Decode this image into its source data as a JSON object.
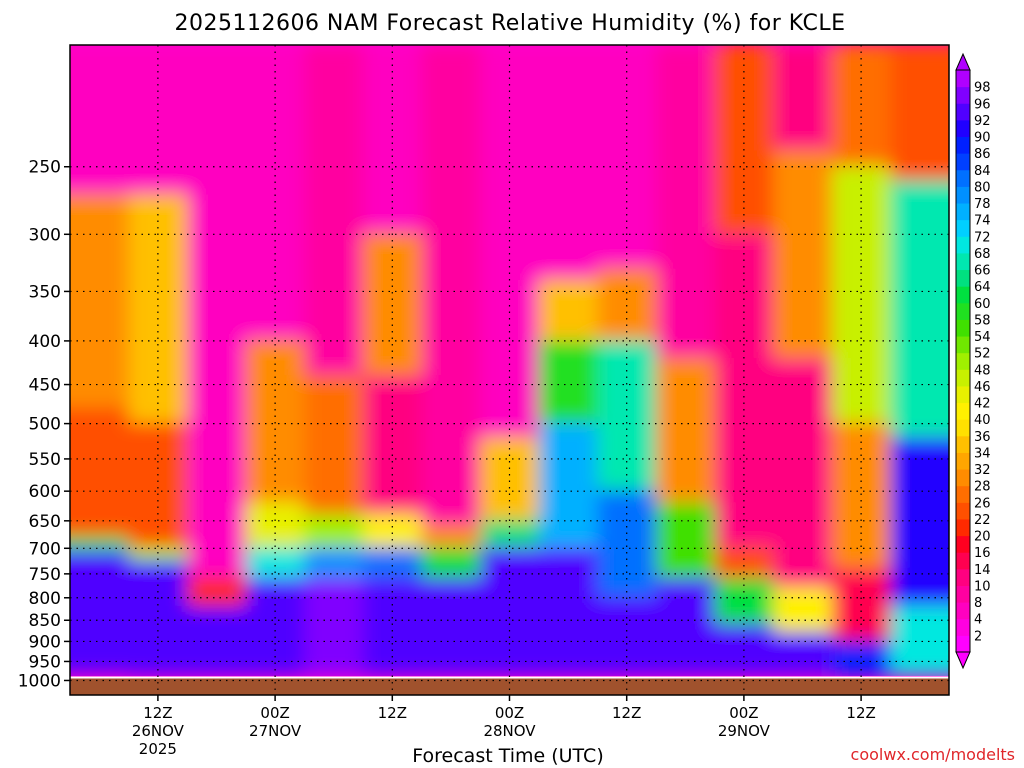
{
  "chart_data": {
    "type": "heatmap",
    "title": "2025112606 NAM Forecast Relative Humidity (%) for KCLE",
    "xlabel": "Forecast Time (UTC)",
    "ylabel": "",
    "credit": "coolwx.com/modelts",
    "y_scale": "pressure (hPa), log-like, inverted",
    "ylim": [
      1040,
      180
    ],
    "y_ticks": [
      250,
      300,
      350,
      400,
      450,
      500,
      550,
      600,
      650,
      700,
      750,
      800,
      850,
      900,
      950,
      1000
    ],
    "x_ticks": [
      {
        "time": "2025-11-26 12Z",
        "lines": [
          "12Z",
          "26NOV",
          "2025"
        ]
      },
      {
        "time": "2025-11-27 00Z",
        "lines": [
          "00Z",
          "27NOV"
        ]
      },
      {
        "time": "2025-11-27 12Z",
        "lines": [
          "12Z"
        ]
      },
      {
        "time": "2025-11-28 00Z",
        "lines": [
          "00Z",
          "28NOV"
        ]
      },
      {
        "time": "2025-11-28 12Z",
        "lines": [
          "12Z"
        ]
      },
      {
        "time": "2025-11-29 00Z",
        "lines": [
          "00Z",
          "29NOV"
        ]
      },
      {
        "time": "2025-11-29 12Z",
        "lines": [
          "12Z"
        ]
      }
    ],
    "grid": true,
    "colorbar": {
      "levels": [
        2,
        4,
        8,
        10,
        14,
        16,
        20,
        22,
        26,
        28,
        32,
        34,
        36,
        40,
        42,
        46,
        48,
        52,
        54,
        58,
        60,
        64,
        66,
        68,
        72,
        74,
        78,
        80,
        84,
        86,
        90,
        92,
        96,
        98
      ],
      "colors": [
        "#ff00ff",
        "#ff00e0",
        "#ff00c0",
        "#ff00a0",
        "#ff0080",
        "#ff0050",
        "#ff0020",
        "#ff2a00",
        "#ff5000",
        "#ff6e00",
        "#ff8c00",
        "#ffa600",
        "#ffc000",
        "#ffe000",
        "#fff000",
        "#e8f000",
        "#c8f000",
        "#a0f000",
        "#70e800",
        "#40e000",
        "#20e020",
        "#00e040",
        "#00e080",
        "#00e8b0",
        "#00e8e0",
        "#00d0ff",
        "#00b0ff",
        "#0090ff",
        "#0070ff",
        "#0040ff",
        "#0020ff",
        "#2000ff",
        "#5000ff",
        "#8000ff",
        "#b000ff"
      ]
    },
    "ground": {
      "label": "surface",
      "pressure_hPa": 992,
      "color": "#a0522d"
    },
    "rh_profiles": [
      {
        "time": "2025-11-26 06Z",
        "bands": [
          {
            "top": 180,
            "bottom": 270,
            "rh": 4
          },
          {
            "top": 270,
            "bottom": 480,
            "rh": 30
          },
          {
            "top": 480,
            "bottom": 680,
            "rh": 24
          },
          {
            "top": 680,
            "bottom": 705,
            "rh": 60
          },
          {
            "top": 705,
            "bottom": 980,
            "rh": 95
          }
        ]
      },
      {
        "time": "2025-11-26 12Z",
        "bands": [
          {
            "top": 180,
            "bottom": 270,
            "rh": 4
          },
          {
            "top": 270,
            "bottom": 500,
            "rh": 34
          },
          {
            "top": 500,
            "bottom": 700,
            "rh": 22
          },
          {
            "top": 700,
            "bottom": 725,
            "rh": 50
          },
          {
            "top": 725,
            "bottom": 985,
            "rh": 94
          }
        ]
      },
      {
        "time": "2025-11-26 18Z",
        "bands": [
          {
            "top": 180,
            "bottom": 760,
            "rh": 6
          },
          {
            "top": 760,
            "bottom": 820,
            "rh": 20
          },
          {
            "top": 820,
            "bottom": 985,
            "rh": 94
          }
        ]
      },
      {
        "time": "2025-11-27 00Z",
        "bands": [
          {
            "top": 180,
            "bottom": 400,
            "rh": 6
          },
          {
            "top": 400,
            "bottom": 620,
            "rh": 28
          },
          {
            "top": 620,
            "bottom": 700,
            "rh": 44
          },
          {
            "top": 700,
            "bottom": 760,
            "rh": 70
          },
          {
            "top": 760,
            "bottom": 985,
            "rh": 95
          }
        ]
      },
      {
        "time": "2025-11-27 06Z",
        "bands": [
          {
            "top": 180,
            "bottom": 440,
            "rh": 8
          },
          {
            "top": 440,
            "bottom": 640,
            "rh": 26
          },
          {
            "top": 640,
            "bottom": 700,
            "rh": 50
          },
          {
            "top": 700,
            "bottom": 760,
            "rh": 78
          },
          {
            "top": 760,
            "bottom": 985,
            "rh": 96
          }
        ]
      },
      {
        "time": "2025-11-27 12Z",
        "bands": [
          {
            "top": 180,
            "bottom": 300,
            "rh": 6
          },
          {
            "top": 300,
            "bottom": 440,
            "rh": 28
          },
          {
            "top": 440,
            "bottom": 640,
            "rh": 12
          },
          {
            "top": 640,
            "bottom": 700,
            "rh": 40
          },
          {
            "top": 700,
            "bottom": 760,
            "rh": 80
          },
          {
            "top": 760,
            "bottom": 985,
            "rh": 95
          }
        ]
      },
      {
        "time": "2025-11-27 18Z",
        "bands": [
          {
            "top": 180,
            "bottom": 660,
            "rh": 8
          },
          {
            "top": 660,
            "bottom": 700,
            "rh": 30
          },
          {
            "top": 700,
            "bottom": 760,
            "rh": 60
          },
          {
            "top": 760,
            "bottom": 985,
            "rh": 95
          }
        ]
      },
      {
        "time": "2025-11-28 00Z",
        "bands": [
          {
            "top": 180,
            "bottom": 520,
            "rh": 6
          },
          {
            "top": 520,
            "bottom": 650,
            "rh": 34
          },
          {
            "top": 650,
            "bottom": 700,
            "rh": 64
          },
          {
            "top": 700,
            "bottom": 985,
            "rh": 93
          }
        ]
      },
      {
        "time": "2025-11-28 06Z",
        "bands": [
          {
            "top": 180,
            "bottom": 340,
            "rh": 6
          },
          {
            "top": 340,
            "bottom": 400,
            "rh": 34
          },
          {
            "top": 400,
            "bottom": 500,
            "rh": 58
          },
          {
            "top": 500,
            "bottom": 700,
            "rh": 76
          },
          {
            "top": 700,
            "bottom": 985,
            "rh": 92
          }
        ]
      },
      {
        "time": "2025-11-28 12Z",
        "bands": [
          {
            "top": 180,
            "bottom": 330,
            "rh": 6
          },
          {
            "top": 330,
            "bottom": 400,
            "rh": 30
          },
          {
            "top": 400,
            "bottom": 600,
            "rh": 66
          },
          {
            "top": 600,
            "bottom": 800,
            "rh": 80
          },
          {
            "top": 800,
            "bottom": 985,
            "rh": 94
          }
        ]
      },
      {
        "time": "2025-11-28 18Z",
        "bands": [
          {
            "top": 180,
            "bottom": 420,
            "rh": 8
          },
          {
            "top": 420,
            "bottom": 620,
            "rh": 28
          },
          {
            "top": 620,
            "bottom": 760,
            "rh": 54
          },
          {
            "top": 760,
            "bottom": 985,
            "rh": 92
          }
        ]
      },
      {
        "time": "2025-11-29 00Z",
        "bands": [
          {
            "top": 180,
            "bottom": 300,
            "rh": 24
          },
          {
            "top": 300,
            "bottom": 700,
            "rh": 10
          },
          {
            "top": 700,
            "bottom": 760,
            "rh": 22
          },
          {
            "top": 760,
            "bottom": 860,
            "rh": 60
          },
          {
            "top": 860,
            "bottom": 985,
            "rh": 95
          }
        ]
      },
      {
        "time": "2025-11-29 06Z",
        "bands": [
          {
            "top": 180,
            "bottom": 240,
            "rh": 12
          },
          {
            "top": 240,
            "bottom": 420,
            "rh": 30
          },
          {
            "top": 420,
            "bottom": 780,
            "rh": 12
          },
          {
            "top": 780,
            "bottom": 880,
            "rh": 40
          },
          {
            "top": 880,
            "bottom": 985,
            "rh": 94
          }
        ]
      },
      {
        "time": "2025-11-29 12Z",
        "bands": [
          {
            "top": 180,
            "bottom": 250,
            "rh": 26
          },
          {
            "top": 250,
            "bottom": 500,
            "rh": 46
          },
          {
            "top": 500,
            "bottom": 740,
            "rh": 28
          },
          {
            "top": 740,
            "bottom": 900,
            "rh": 14
          },
          {
            "top": 900,
            "bottom": 985,
            "rh": 86
          }
        ]
      },
      {
        "time": "2025-11-29 18Z",
        "bands": [
          {
            "top": 180,
            "bottom": 260,
            "rh": 24
          },
          {
            "top": 260,
            "bottom": 520,
            "rh": 66
          },
          {
            "top": 520,
            "bottom": 820,
            "rh": 90
          },
          {
            "top": 820,
            "bottom": 985,
            "rh": 70
          }
        ]
      }
    ]
  }
}
